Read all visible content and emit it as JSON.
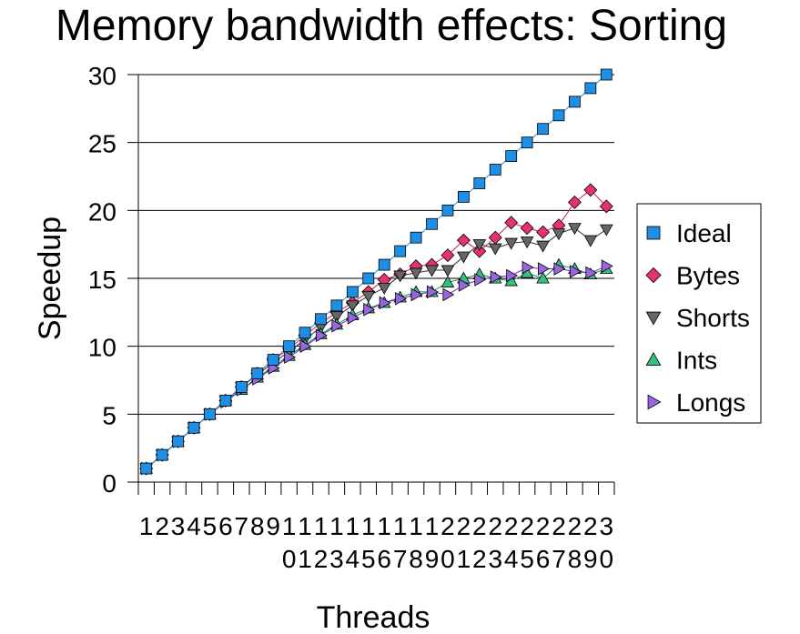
{
  "chart_data": {
    "type": "line",
    "title": "Memory bandwidth effects: Sorting",
    "xlabel": "Threads",
    "ylabel": "Speedup",
    "ylim": [
      0,
      30
    ],
    "yticks": [
      0,
      5,
      10,
      15,
      20,
      25,
      30
    ],
    "grid": true,
    "legend_position": "right",
    "categories": [
      "1",
      "2",
      "3",
      "4",
      "5",
      "6",
      "7",
      "8",
      "9",
      "10",
      "11",
      "12",
      "13",
      "14",
      "15",
      "16",
      "17",
      "18",
      "19",
      "20",
      "21",
      "22",
      "23",
      "24",
      "25",
      "26",
      "27",
      "28",
      "29",
      "30"
    ],
    "series": [
      {
        "name": "Ideal",
        "marker": "square",
        "color": "#1e8fe6",
        "line_color": "#1e8fe6",
        "values": [
          1,
          2,
          3,
          4,
          5,
          6,
          7,
          8,
          9,
          10,
          11,
          12,
          13,
          14,
          15,
          16,
          17,
          18,
          19,
          20,
          21,
          22,
          23,
          24,
          25,
          26,
          27,
          28,
          29,
          30
        ]
      },
      {
        "name": "Bytes",
        "marker": "diamond",
        "color": "#e8336a",
        "line_color": "#d01c5a",
        "values": [
          1,
          2,
          3,
          4,
          5,
          6,
          7,
          8,
          9,
          9.8,
          10.8,
          11.7,
          12.5,
          13.2,
          14.0,
          14.9,
          15.3,
          15.9,
          16.0,
          16.7,
          17.8,
          17.0,
          18.0,
          19.1,
          18.7,
          18.4,
          18.9,
          20.6,
          21.5,
          20.3
        ]
      },
      {
        "name": "Shorts",
        "marker": "triangle-down",
        "color": "#666666",
        "line_color": "#333333",
        "values": [
          1,
          2,
          3,
          4,
          5,
          6,
          7,
          7.9,
          8.8,
          9.6,
          10.5,
          11.4,
          12.2,
          13.0,
          13.7,
          14.3,
          15.2,
          15.4,
          15.6,
          15.6,
          16.6,
          17.5,
          17.2,
          17.6,
          17.7,
          17.4,
          18.3,
          18.7,
          17.8,
          18.6
        ]
      },
      {
        "name": "Ints",
        "marker": "triangle-up",
        "color": "#33c080",
        "line_color": "#1a8a50",
        "values": [
          1,
          2,
          3,
          4,
          5,
          6,
          6.8,
          7.7,
          8.5,
          9.3,
          10.1,
          10.9,
          11.6,
          12.3,
          12.8,
          13.2,
          13.6,
          14.0,
          14.0,
          14.7,
          15.0,
          15.3,
          15.0,
          14.8,
          15.4,
          15.0,
          16.0,
          15.7,
          15.3,
          15.7
        ]
      },
      {
        "name": "Longs",
        "marker": "triangle-right",
        "color": "#9966dd",
        "line_color": "#6633aa",
        "values": [
          1,
          2,
          3,
          4,
          5,
          5.9,
          6.8,
          7.6,
          8.4,
          9.2,
          10.0,
          10.8,
          11.5,
          12.1,
          12.7,
          13.2,
          13.5,
          13.8,
          14.0,
          13.8,
          14.5,
          14.9,
          15.1,
          15.2,
          15.8,
          15.7,
          15.7,
          15.5,
          15.4,
          15.9
        ]
      }
    ]
  }
}
